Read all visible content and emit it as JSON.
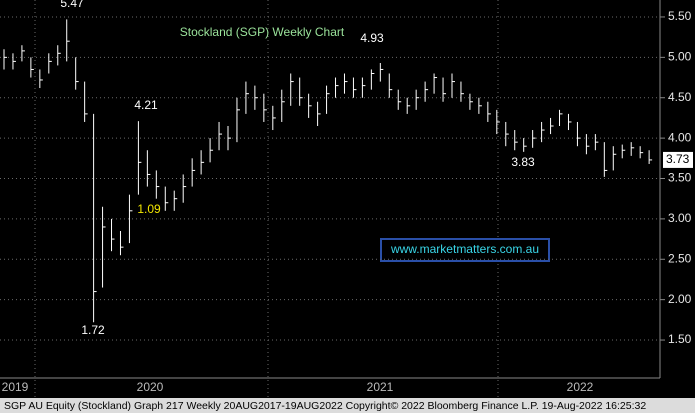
{
  "chart_data": {
    "type": "ohlc",
    "title": "Stockland (SGP) Weekly Chart",
    "title_color": "#9be39b",
    "color": "#ffffff",
    "high": [
      5.1,
      5.05,
      5.15,
      5.0,
      4.85,
      5.05,
      5.15,
      5.47,
      5.0,
      4.7,
      4.3,
      3.15,
      3.0,
      2.85,
      3.3,
      4.21,
      3.85,
      3.6,
      3.4,
      3.35,
      3.55,
      3.75,
      3.85,
      4.0,
      4.2,
      4.15,
      4.5,
      4.7,
      4.65,
      4.55,
      4.4,
      4.6,
      4.8,
      4.75,
      4.55,
      4.45,
      4.65,
      4.75,
      4.8,
      4.75,
      4.75,
      4.85,
      4.93,
      4.8,
      4.6,
      4.5,
      4.6,
      4.7,
      4.8,
      4.75,
      4.8,
      4.7,
      4.55,
      4.5,
      4.45,
      4.35,
      4.2,
      4.1,
      4.0,
      4.1,
      4.2,
      4.25,
      4.35,
      4.3,
      4.2,
      4.05,
      4.05,
      3.95,
      3.9,
      3.92,
      3.95,
      3.9,
      3.85
    ],
    "low": [
      4.85,
      4.85,
      4.95,
      4.75,
      4.62,
      4.8,
      4.9,
      4.95,
      4.6,
      4.2,
      1.72,
      2.15,
      2.6,
      2.55,
      2.7,
      3.3,
      3.4,
      3.25,
      3.1,
      3.1,
      3.2,
      3.4,
      3.55,
      3.7,
      3.85,
      3.85,
      3.95,
      4.3,
      4.35,
      4.2,
      4.1,
      4.2,
      4.4,
      4.4,
      4.25,
      4.15,
      4.3,
      4.5,
      4.55,
      4.5,
      4.5,
      4.6,
      4.7,
      4.5,
      4.35,
      4.3,
      4.35,
      4.45,
      4.55,
      4.45,
      4.5,
      4.45,
      4.35,
      4.3,
      4.2,
      4.05,
      3.9,
      3.85,
      3.83,
      3.88,
      3.95,
      4.05,
      4.15,
      4.1,
      3.9,
      3.8,
      3.85,
      3.52,
      3.6,
      3.75,
      3.78,
      3.75,
      3.68
    ],
    "close": [
      5.0,
      4.95,
      5.08,
      4.85,
      4.72,
      4.95,
      5.05,
      5.2,
      4.7,
      4.3,
      2.1,
      2.9,
      2.75,
      2.65,
      3.1,
      3.7,
      3.55,
      3.4,
      3.2,
      3.25,
      3.4,
      3.6,
      3.7,
      3.85,
      4.05,
      4.0,
      4.35,
      4.55,
      4.5,
      4.35,
      4.25,
      4.45,
      4.7,
      4.5,
      4.4,
      4.3,
      4.55,
      4.65,
      4.7,
      4.6,
      4.65,
      4.8,
      4.85,
      4.6,
      4.45,
      4.4,
      4.5,
      4.6,
      4.75,
      4.55,
      4.7,
      4.55,
      4.45,
      4.4,
      4.3,
      4.2,
      4.05,
      3.95,
      3.9,
      4.0,
      4.1,
      4.15,
      4.3,
      4.2,
      4.0,
      3.9,
      3.95,
      3.6,
      3.8,
      3.85,
      3.88,
      3.82,
      3.73
    ],
    "last_price": 3.73,
    "ylim": [
      1.03,
      5.71
    ],
    "yticks": [
      {
        "value": 1.5,
        "label": "1.50"
      },
      {
        "value": 2,
        "label": "2.00"
      },
      {
        "value": 2.5,
        "label": "2.50"
      },
      {
        "value": 3,
        "label": "3.00"
      },
      {
        "value": 3.5,
        "label": "3.50"
      },
      {
        "value": 4,
        "label": "4.00"
      },
      {
        "value": 4.5,
        "label": "4.50"
      },
      {
        "value": 5,
        "label": "5.00"
      },
      {
        "value": 5.5,
        "label": "5.50"
      }
    ],
    "grid": true,
    "x_labels": [
      "2019",
      "2020",
      "2021",
      "2022"
    ],
    "annotations": [
      {
        "text": "5.47",
        "color": "#ffffff"
      },
      {
        "text": "4.21",
        "color": "#ffffff"
      },
      {
        "text": "1.09",
        "color": "#f2e600"
      },
      {
        "text": "1.72",
        "color": "#ffffff"
      },
      {
        "text": "4.93",
        "color": "#ffffff"
      },
      {
        "text": "3.83",
        "color": "#ffffff"
      }
    ],
    "watermark": "www.marketmatters.com.au",
    "footer": "SGP AU Equity (Stockland) Graph 217  Weekly 20AUG2017-19AUG2022 Copyright© 2022 Bloomberg Finance L.P. 19-Aug-2022 16:25:32"
  }
}
